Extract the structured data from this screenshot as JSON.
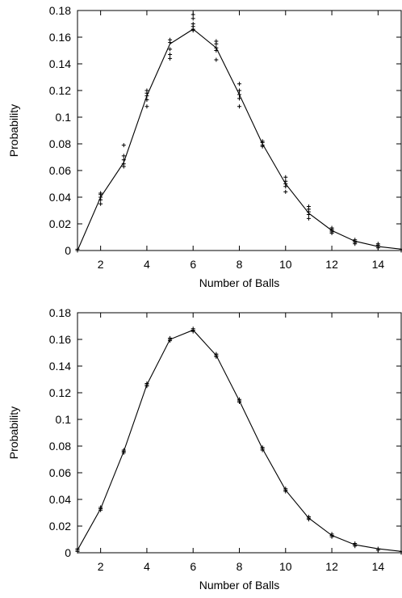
{
  "chart_data": [
    {
      "type": "line",
      "xlabel": "Number of Balls",
      "ylabel": "Probability",
      "xlim": [
        1,
        15
      ],
      "ylim": [
        0,
        0.18
      ],
      "grid": false,
      "xticks": [
        2,
        4,
        6,
        8,
        10,
        12,
        14
      ],
      "yticks": [
        0,
        0.02,
        0.04,
        0.06,
        0.08,
        0.1,
        0.12,
        0.14,
        0.16,
        0.18
      ],
      "ytick_labels": [
        "0",
        "0.02",
        "0.04",
        "0.06",
        "0.08",
        "0.1",
        "0.12",
        "0.14",
        "0.16",
        "0.18"
      ],
      "series": [
        {
          "type": "line",
          "x": [
            1,
            2,
            3,
            4,
            5,
            6,
            7,
            8,
            9,
            10,
            11,
            12,
            13,
            14,
            15
          ],
          "y": [
            0.0,
            0.04,
            0.066,
            0.116,
            0.155,
            0.166,
            0.152,
            0.117,
            0.08,
            0.05,
            0.028,
            0.015,
            0.007,
            0.003,
            0.001
          ]
        },
        {
          "type": "scatter",
          "marker": "plus",
          "points": [
            [
              1,
              0.0
            ],
            [
              1,
              0.0
            ],
            [
              1,
              0.001
            ],
            [
              2,
              0.035
            ],
            [
              2,
              0.038
            ],
            [
              2,
              0.04
            ],
            [
              2,
              0.042
            ],
            [
              2,
              0.043
            ],
            [
              3,
              0.063
            ],
            [
              3,
              0.065
            ],
            [
              3,
              0.068
            ],
            [
              3,
              0.071
            ],
            [
              3,
              0.079
            ],
            [
              4,
              0.108
            ],
            [
              4,
              0.113
            ],
            [
              4,
              0.116
            ],
            [
              4,
              0.118
            ],
            [
              4,
              0.12
            ],
            [
              5,
              0.144
            ],
            [
              5,
              0.147
            ],
            [
              5,
              0.151
            ],
            [
              5,
              0.156
            ],
            [
              5,
              0.158
            ],
            [
              6,
              0.165
            ],
            [
              6,
              0.166
            ],
            [
              6,
              0.168
            ],
            [
              6,
              0.17
            ],
            [
              6,
              0.174
            ],
            [
              6,
              0.177
            ],
            [
              7,
              0.143
            ],
            [
              7,
              0.15
            ],
            [
              7,
              0.152
            ],
            [
              7,
              0.155
            ],
            [
              7,
              0.157
            ],
            [
              8,
              0.108
            ],
            [
              8,
              0.114
            ],
            [
              8,
              0.117
            ],
            [
              8,
              0.12
            ],
            [
              8,
              0.125
            ],
            [
              9,
              0.078
            ],
            [
              9,
              0.079
            ],
            [
              9,
              0.081
            ],
            [
              9,
              0.082
            ],
            [
              10,
              0.044
            ],
            [
              10,
              0.048
            ],
            [
              10,
              0.05
            ],
            [
              10,
              0.052
            ],
            [
              10,
              0.055
            ],
            [
              11,
              0.024
            ],
            [
              11,
              0.027
            ],
            [
              11,
              0.029
            ],
            [
              11,
              0.031
            ],
            [
              11,
              0.033
            ],
            [
              12,
              0.013
            ],
            [
              12,
              0.014
            ],
            [
              12,
              0.015
            ],
            [
              12,
              0.016
            ],
            [
              12,
              0.017
            ],
            [
              13,
              0.005
            ],
            [
              13,
              0.006
            ],
            [
              13,
              0.007
            ],
            [
              13,
              0.008
            ],
            [
              14,
              0.002
            ],
            [
              14,
              0.003
            ],
            [
              14,
              0.004
            ],
            [
              14,
              0.005
            ],
            [
              15,
              0.0
            ],
            [
              15,
              0.001
            ]
          ]
        }
      ]
    },
    {
      "type": "line",
      "xlabel": "Number of Balls",
      "ylabel": "Probability",
      "xlim": [
        1,
        15
      ],
      "ylim": [
        0,
        0.18
      ],
      "grid": false,
      "xticks": [
        2,
        4,
        6,
        8,
        10,
        12,
        14
      ],
      "yticks": [
        0,
        0.02,
        0.04,
        0.06,
        0.08,
        0.1,
        0.12,
        0.14,
        0.16,
        0.18
      ],
      "ytick_labels": [
        "0",
        "0.02",
        "0.04",
        "0.06",
        "0.08",
        "0.1",
        "0.12",
        "0.14",
        "0.16",
        "0.18"
      ],
      "series": [
        {
          "type": "line",
          "x": [
            1,
            2,
            3,
            4,
            5,
            6,
            7,
            8,
            9,
            10,
            11,
            12,
            13,
            14,
            15
          ],
          "y": [
            0.002,
            0.033,
            0.076,
            0.126,
            0.16,
            0.167,
            0.148,
            0.114,
            0.078,
            0.047,
            0.026,
            0.013,
            0.006,
            0.003,
            0.001
          ]
        },
        {
          "type": "scatter",
          "marker": "plus",
          "points": [
            [
              1,
              0.001
            ],
            [
              1,
              0.002
            ],
            [
              1,
              0.003
            ],
            [
              2,
              0.032
            ],
            [
              2,
              0.033
            ],
            [
              2,
              0.034
            ],
            [
              3,
              0.075
            ],
            [
              3,
              0.076
            ],
            [
              3,
              0.077
            ],
            [
              4,
              0.125
            ],
            [
              4,
              0.126
            ],
            [
              4,
              0.127
            ],
            [
              5,
              0.159
            ],
            [
              5,
              0.16
            ],
            [
              5,
              0.161
            ],
            [
              6,
              0.166
            ],
            [
              6,
              0.167
            ],
            [
              6,
              0.168
            ],
            [
              7,
              0.147
            ],
            [
              7,
              0.148
            ],
            [
              7,
              0.149
            ],
            [
              8,
              0.113
            ],
            [
              8,
              0.114
            ],
            [
              8,
              0.115
            ],
            [
              9,
              0.077
            ],
            [
              9,
              0.078
            ],
            [
              9,
              0.079
            ],
            [
              10,
              0.046
            ],
            [
              10,
              0.047
            ],
            [
              10,
              0.048
            ],
            [
              11,
              0.025
            ],
            [
              11,
              0.026
            ],
            [
              11,
              0.027
            ],
            [
              12,
              0.012
            ],
            [
              12,
              0.013
            ],
            [
              12,
              0.014
            ],
            [
              13,
              0.005
            ],
            [
              13,
              0.006
            ],
            [
              13,
              0.007
            ],
            [
              14,
              0.002
            ],
            [
              14,
              0.003
            ],
            [
              15,
              0.0
            ],
            [
              15,
              0.001
            ]
          ]
        }
      ]
    }
  ]
}
